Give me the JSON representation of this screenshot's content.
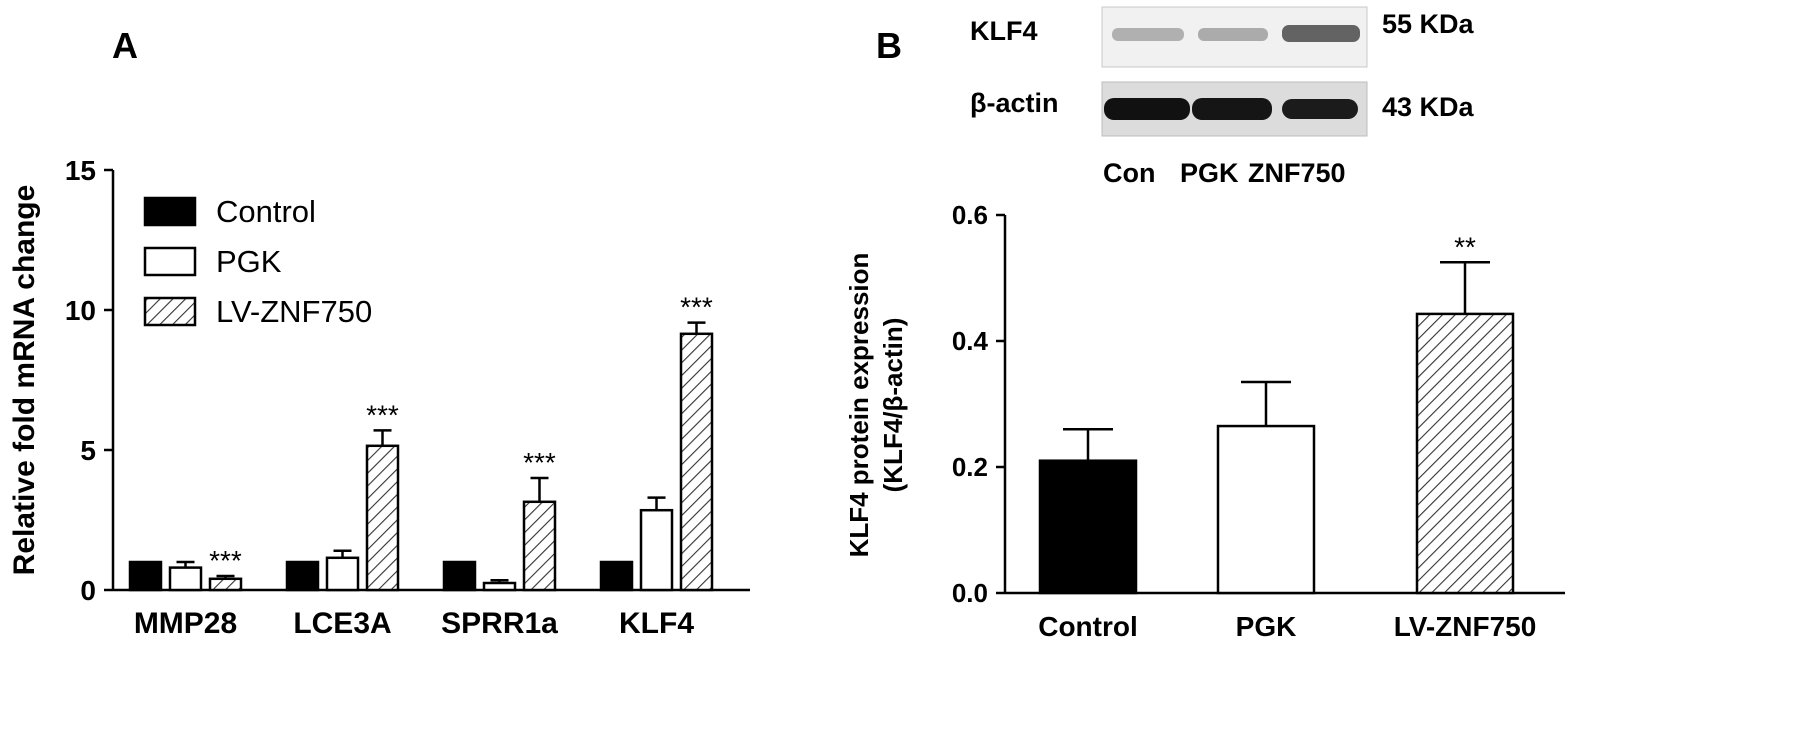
{
  "panel_a_label": "A",
  "panel_b_label": "B",
  "chart_data": [
    {
      "type": "bar",
      "panel": "A",
      "ylabel": "Relative fold mRNA change",
      "xlabel": "",
      "ylim": [
        0,
        15
      ],
      "yticks": [
        "0",
        "5",
        "10",
        "15"
      ],
      "categories": [
        "MMP28",
        "LCE3A",
        "SPRR1a",
        "KLF4"
      ],
      "legend_position": "top-left",
      "series": [
        {
          "name": "Control",
          "values": [
            1.0,
            1.0,
            1.0,
            1.0
          ],
          "errors": [
            0,
            0,
            0,
            0
          ],
          "fill": "solid-black"
        },
        {
          "name": "PGK",
          "values": [
            0.8,
            1.15,
            0.25,
            2.85
          ],
          "errors": [
            0.2,
            0.25,
            0.1,
            0.45
          ],
          "fill": "white"
        },
        {
          "name": "LV-ZNF750",
          "values": [
            0.4,
            5.15,
            3.15,
            9.15
          ],
          "errors": [
            0.1,
            0.55,
            0.85,
            0.4
          ],
          "fill": "hatched"
        }
      ],
      "annotations": [
        {
          "category": "MMP28",
          "series": "LV-ZNF750",
          "text": "***"
        },
        {
          "category": "LCE3A",
          "series": "LV-ZNF750",
          "text": "***"
        },
        {
          "category": "SPRR1a",
          "series": "LV-ZNF750",
          "text": "***"
        },
        {
          "category": "KLF4",
          "series": "LV-ZNF750",
          "text": "***"
        }
      ]
    },
    {
      "type": "bar",
      "panel": "B",
      "ylabel_line1": "KLF4 protein expression",
      "ylabel_line2": "(KLF4/β-actin)",
      "xlabel": "",
      "ylim": [
        0,
        0.6
      ],
      "yticks": [
        "0.0",
        "0.2",
        "0.4",
        "0.6"
      ],
      "categories": [
        "Control",
        "PGK",
        "LV-ZNF750"
      ],
      "values": [
        0.21,
        0.265,
        0.443
      ],
      "errors": [
        0.05,
        0.07,
        0.082
      ],
      "fills": [
        "solid-black",
        "white",
        "hatched"
      ],
      "annotations": [
        {
          "category": "LV-ZNF750",
          "text": "**"
        }
      ]
    }
  ],
  "blot": {
    "rows": [
      {
        "label": "KLF4",
        "size": "55 KDa"
      },
      {
        "label": "β-actin",
        "size": "43 KDa"
      }
    ],
    "lanes": [
      "Con",
      "PGK",
      "ZNF750"
    ]
  }
}
